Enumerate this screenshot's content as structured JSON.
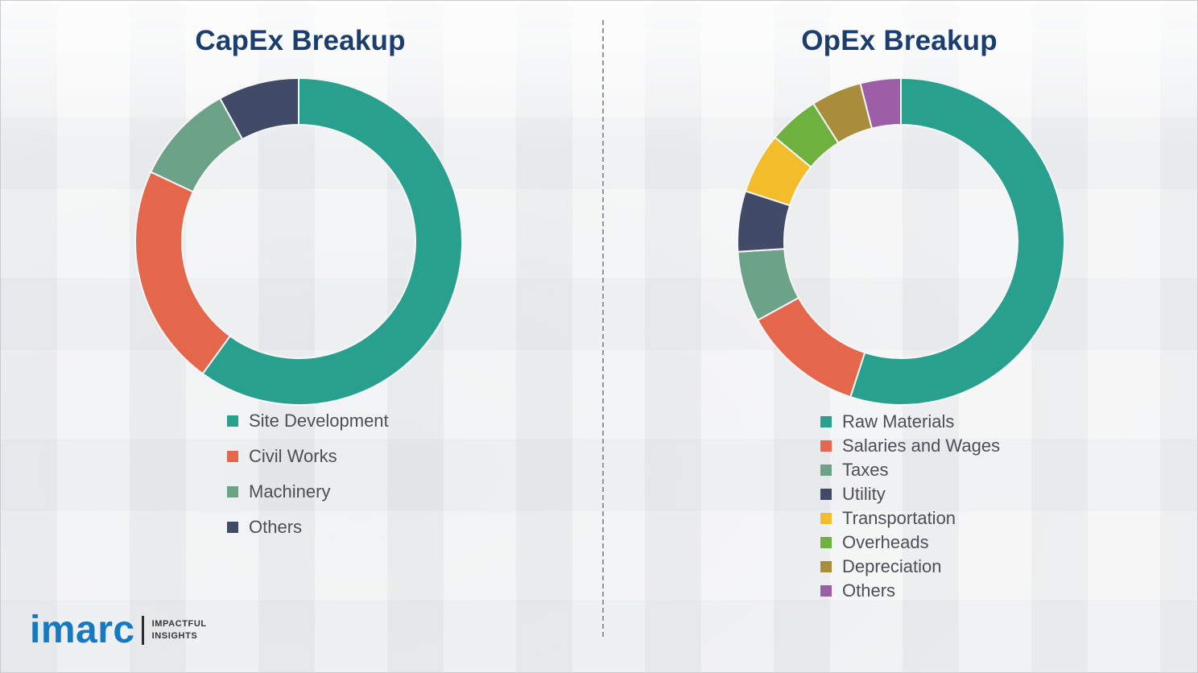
{
  "page": {
    "background_color": "#f3f4f5",
    "divider_style": "vertical-dashed"
  },
  "chart_data": [
    {
      "type": "pie",
      "subtype": "donut",
      "title": "CapEx Breakup",
      "labels": [
        "Site Development",
        "Civil Works",
        "Machinery",
        "Others"
      ],
      "values": [
        60,
        22,
        10,
        8
      ],
      "colors": [
        "#29a08d",
        "#e4674c",
        "#6ca287",
        "#414a67"
      ],
      "value_units": "percent-estimated-from-arc-angles",
      "legend_position": "below-left",
      "start_angle_deg": 0,
      "direction": "clockwise"
    },
    {
      "type": "pie",
      "subtype": "donut",
      "title": "OpEx Breakup",
      "labels": [
        "Raw Materials",
        "Salaries and Wages",
        "Taxes",
        "Utility",
        "Transportation",
        "Overheads",
        "Depreciation",
        "Others"
      ],
      "values": [
        55,
        12,
        7,
        6,
        6,
        5,
        5,
        4
      ],
      "colors": [
        "#29a08d",
        "#e4674c",
        "#6ca287",
        "#414a67",
        "#f2bc2b",
        "#6fb13f",
        "#aa8c3d",
        "#9c5fa7"
      ],
      "value_units": "percent-estimated-from-arc-angles",
      "legend_position": "below-left",
      "start_angle_deg": 0,
      "direction": "clockwise"
    }
  ],
  "logo": {
    "brand": "imarc",
    "tagline": [
      "IMPACTFUL",
      "INSIGHTS"
    ],
    "brand_color": "#1779c0"
  }
}
